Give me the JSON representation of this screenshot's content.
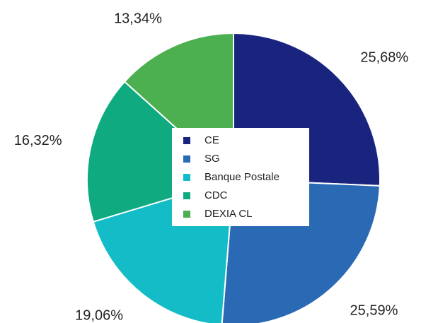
{
  "chart_data": {
    "type": "pie",
    "categories": [
      "CE",
      "SG",
      "Banque Postale",
      "CDC",
      "DEXIA CL"
    ],
    "values": [
      25.68,
      25.59,
      19.06,
      16.32,
      13.34
    ],
    "value_labels": [
      "25,68%",
      "25,59%",
      "19,06%",
      "16,32%",
      "13,34%"
    ],
    "colors": [
      "#19247f",
      "#2a6ab5",
      "#13bcc6",
      "#0faa80",
      "#4caf50"
    ],
    "legend": "center"
  }
}
